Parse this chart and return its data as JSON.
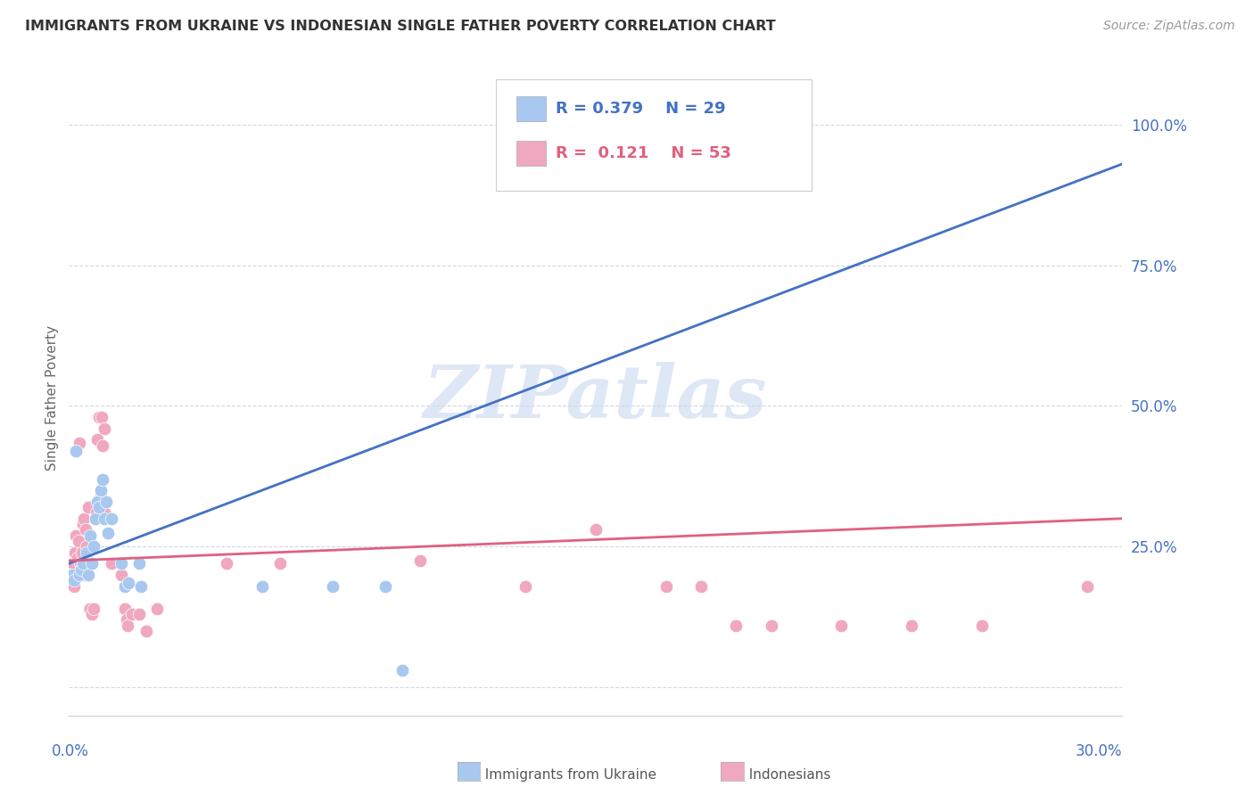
{
  "title": "IMMIGRANTS FROM UKRAINE VS INDONESIAN SINGLE FATHER POVERTY CORRELATION CHART",
  "source": "Source: ZipAtlas.com",
  "ylabel": "Single Father Poverty",
  "y_ticks": [
    0,
    25,
    50,
    75,
    100
  ],
  "y_tick_labels": [
    "",
    "25.0%",
    "50.0%",
    "75.0%",
    "100.0%"
  ],
  "x_range": [
    0.0,
    30.0
  ],
  "y_range": [
    -5,
    108
  ],
  "ukraine_color": "#a8c8f0",
  "indonesian_color": "#f0a8c0",
  "ukraine_line_color": "#4472c4",
  "indonesian_line_color": "#e06080",
  "dashed_line_color": "#b0c8e8",
  "watermark_color": "#c8d8f0",
  "ukraine_line": [
    0.0,
    22.0,
    30.0,
    93.0
  ],
  "indonesia_line": [
    0.0,
    22.5,
    30.0,
    30.0
  ],
  "dashed_line": [
    0.0,
    22.0,
    30.0,
    93.0
  ],
  "ukraine_scatter": [
    [
      0.1,
      20.0
    ],
    [
      0.15,
      19.0
    ],
    [
      0.2,
      42.0
    ],
    [
      0.3,
      20.0
    ],
    [
      0.35,
      21.0
    ],
    [
      0.4,
      22.0
    ],
    [
      0.5,
      24.0
    ],
    [
      0.55,
      20.0
    ],
    [
      0.6,
      27.0
    ],
    [
      0.65,
      22.0
    ],
    [
      0.7,
      25.0
    ],
    [
      0.75,
      30.0
    ],
    [
      0.8,
      33.0
    ],
    [
      0.85,
      32.0
    ],
    [
      0.9,
      35.0
    ],
    [
      0.95,
      37.0
    ],
    [
      1.0,
      30.0
    ],
    [
      1.05,
      33.0
    ],
    [
      1.1,
      27.5
    ],
    [
      1.2,
      30.0
    ],
    [
      1.5,
      22.0
    ],
    [
      1.6,
      18.0
    ],
    [
      1.7,
      18.5
    ],
    [
      2.0,
      22.0
    ],
    [
      2.05,
      18.0
    ],
    [
      5.5,
      18.0
    ],
    [
      7.5,
      18.0
    ],
    [
      9.0,
      18.0
    ],
    [
      9.5,
      3.0
    ]
  ],
  "indonesian_scatter": [
    [
      0.1,
      20.0
    ],
    [
      0.12,
      22.0
    ],
    [
      0.15,
      18.0
    ],
    [
      0.18,
      24.0
    ],
    [
      0.2,
      27.0
    ],
    [
      0.22,
      20.0
    ],
    [
      0.25,
      23.0
    ],
    [
      0.28,
      26.0
    ],
    [
      0.3,
      43.5
    ],
    [
      0.32,
      22.0
    ],
    [
      0.35,
      21.0
    ],
    [
      0.38,
      24.0
    ],
    [
      0.4,
      29.0
    ],
    [
      0.42,
      30.0
    ],
    [
      0.45,
      20.0
    ],
    [
      0.48,
      28.0
    ],
    [
      0.5,
      25.0
    ],
    [
      0.55,
      32.0
    ],
    [
      0.58,
      14.0
    ],
    [
      0.6,
      14.0
    ],
    [
      0.65,
      13.0
    ],
    [
      0.7,
      14.0
    ],
    [
      0.75,
      30.0
    ],
    [
      0.78,
      31.0
    ],
    [
      0.8,
      44.0
    ],
    [
      0.85,
      48.0
    ],
    [
      0.9,
      34.0
    ],
    [
      0.92,
      48.0
    ],
    [
      0.95,
      43.0
    ],
    [
      1.0,
      46.0
    ],
    [
      1.0,
      31.0
    ],
    [
      1.2,
      22.0
    ],
    [
      1.5,
      20.0
    ],
    [
      1.6,
      14.0
    ],
    [
      1.65,
      12.0
    ],
    [
      1.68,
      11.0
    ],
    [
      1.8,
      13.0
    ],
    [
      2.0,
      13.0
    ],
    [
      2.2,
      10.0
    ],
    [
      2.5,
      14.0
    ],
    [
      4.5,
      22.0
    ],
    [
      6.0,
      22.0
    ],
    [
      10.0,
      22.5
    ],
    [
      13.0,
      18.0
    ],
    [
      15.0,
      28.0
    ],
    [
      17.0,
      18.0
    ],
    [
      18.0,
      18.0
    ],
    [
      19.0,
      11.0
    ],
    [
      20.0,
      11.0
    ],
    [
      22.0,
      11.0
    ],
    [
      24.0,
      11.0
    ],
    [
      26.0,
      11.0
    ],
    [
      29.0,
      18.0
    ]
  ]
}
